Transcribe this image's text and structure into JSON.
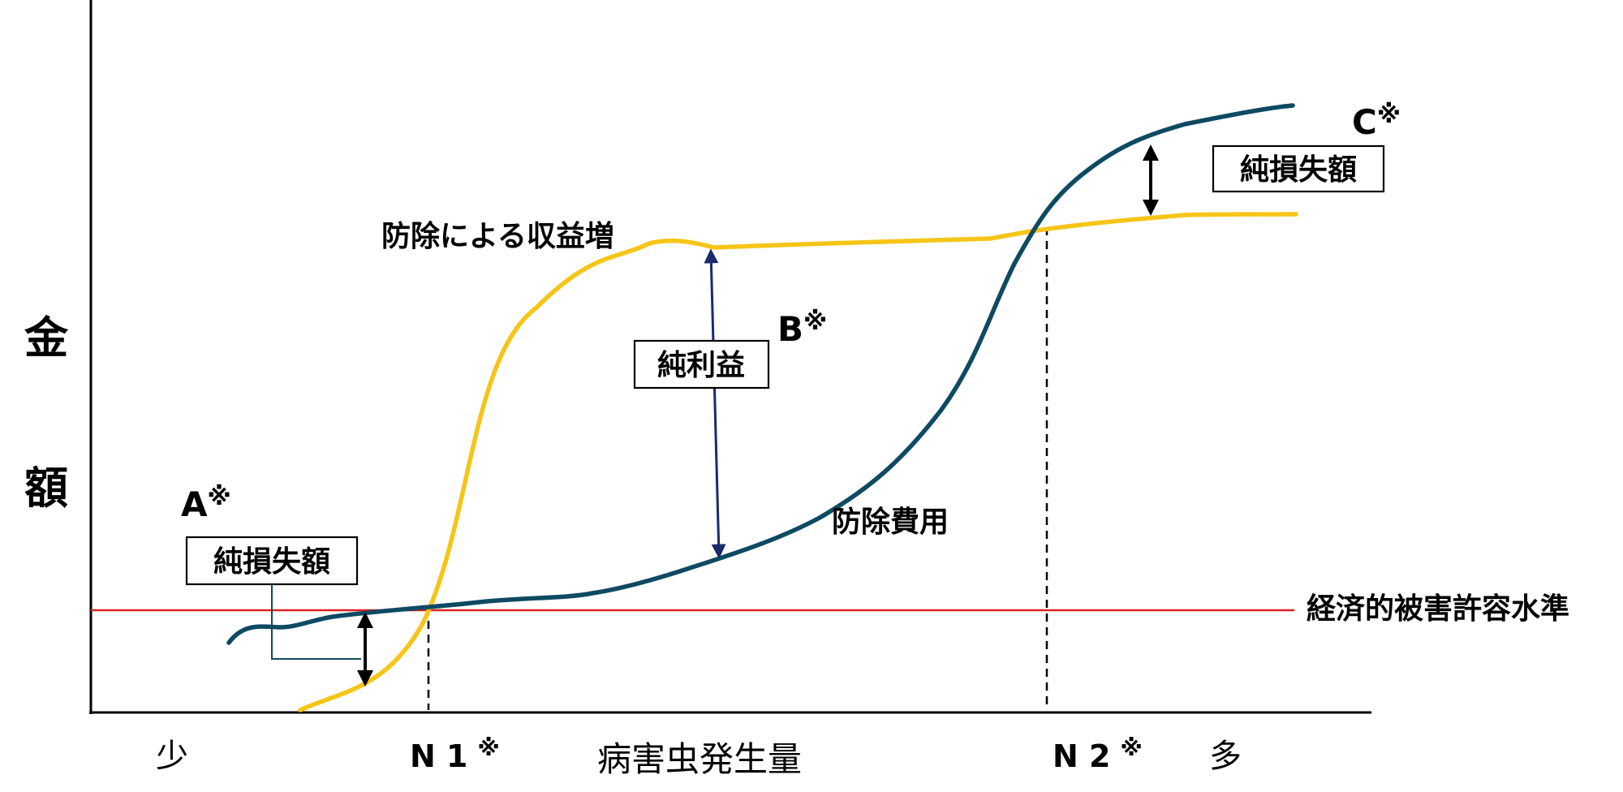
{
  "y_axis_label": [
    "金",
    "額"
  ],
  "x_axis": {
    "label": "病害虫発生量",
    "low": "少",
    "high": "多",
    "n1": "N 1",
    "n1_mark": "※",
    "n2": "N 2",
    "n2_mark": "※"
  },
  "curves": {
    "revenue": {
      "label": "防除による収益増",
      "color": "#f5c518"
    },
    "cost": {
      "label": "防除費用",
      "color": "#0e4a62"
    },
    "threshold": {
      "label": "経済的被害許容水準",
      "color": "#e02020"
    }
  },
  "points": {
    "a": {
      "letter": "A",
      "mark": "※",
      "box": "純損失額"
    },
    "b": {
      "letter": "B",
      "mark": "※",
      "box": "純利益"
    },
    "c": {
      "letter": "C",
      "mark": "※",
      "box": "純損失額"
    }
  }
}
